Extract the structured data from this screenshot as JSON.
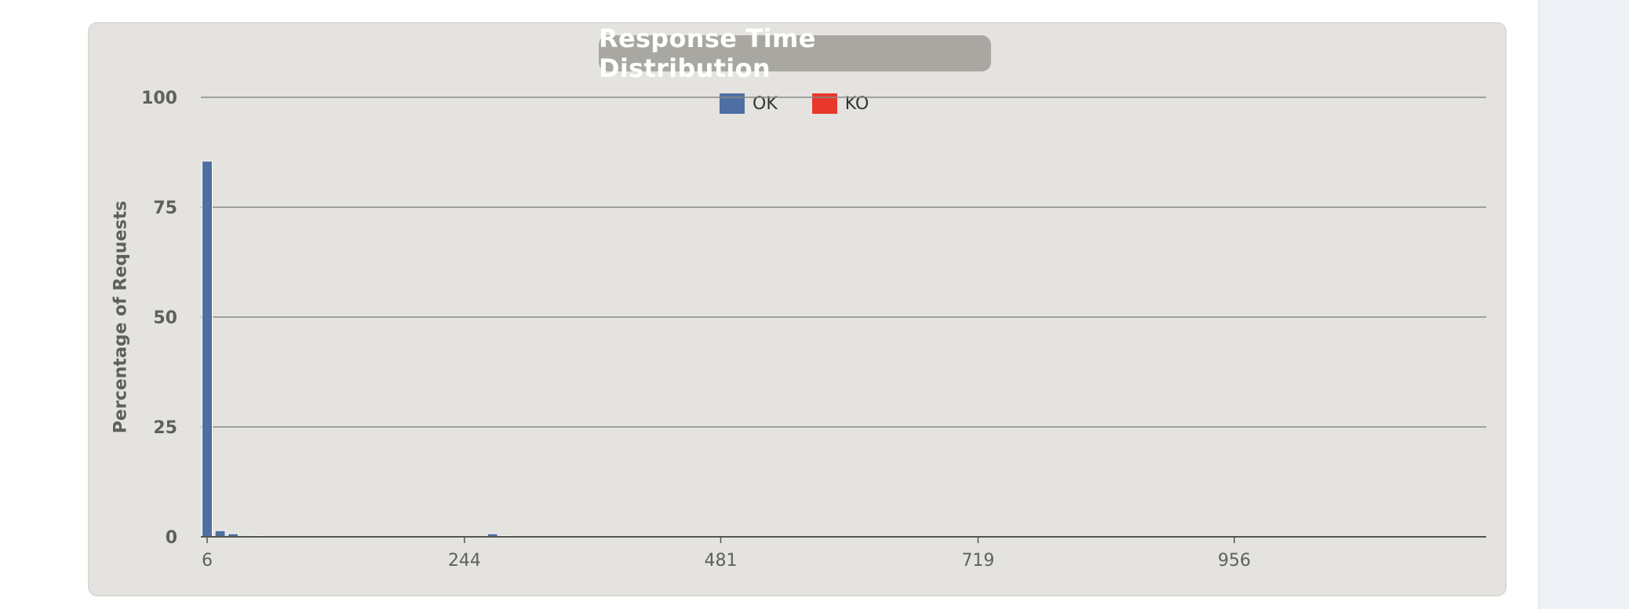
{
  "chart_data": {
    "type": "bar",
    "title": "Response Time Distribution",
    "xlabel": "",
    "ylabel": "Percentage of Requests",
    "xlim": [
      0,
      1250
    ],
    "ylim": [
      0,
      100
    ],
    "yticks": [
      0,
      25,
      50,
      75,
      100
    ],
    "xticks": [
      6,
      244,
      481,
      719,
      956
    ],
    "grid": true,
    "legend_position": "top-center",
    "series": [
      {
        "name": "OK",
        "color": "#4f6fa3",
        "x": [
          6,
          18,
          30,
          42,
          54,
          270,
          283,
          296,
          335,
          355,
          380,
          410,
          440,
          550,
          640,
          660,
          680,
          700,
          710,
          720,
          730,
          740,
          750,
          760,
          820
        ],
        "values": [
          85.5,
          1.4,
          0.7,
          0.3,
          0.2,
          0.7,
          0.2,
          0.1,
          0.1,
          0.1,
          0.1,
          0.1,
          0.1,
          0.1,
          0.1,
          0.1,
          0.1,
          0.1,
          0.1,
          0.1,
          0.1,
          0.1,
          0.1,
          0.1,
          0.1
        ]
      },
      {
        "name": "KO",
        "color": "#e8382d",
        "x": [],
        "values": []
      }
    ]
  }
}
